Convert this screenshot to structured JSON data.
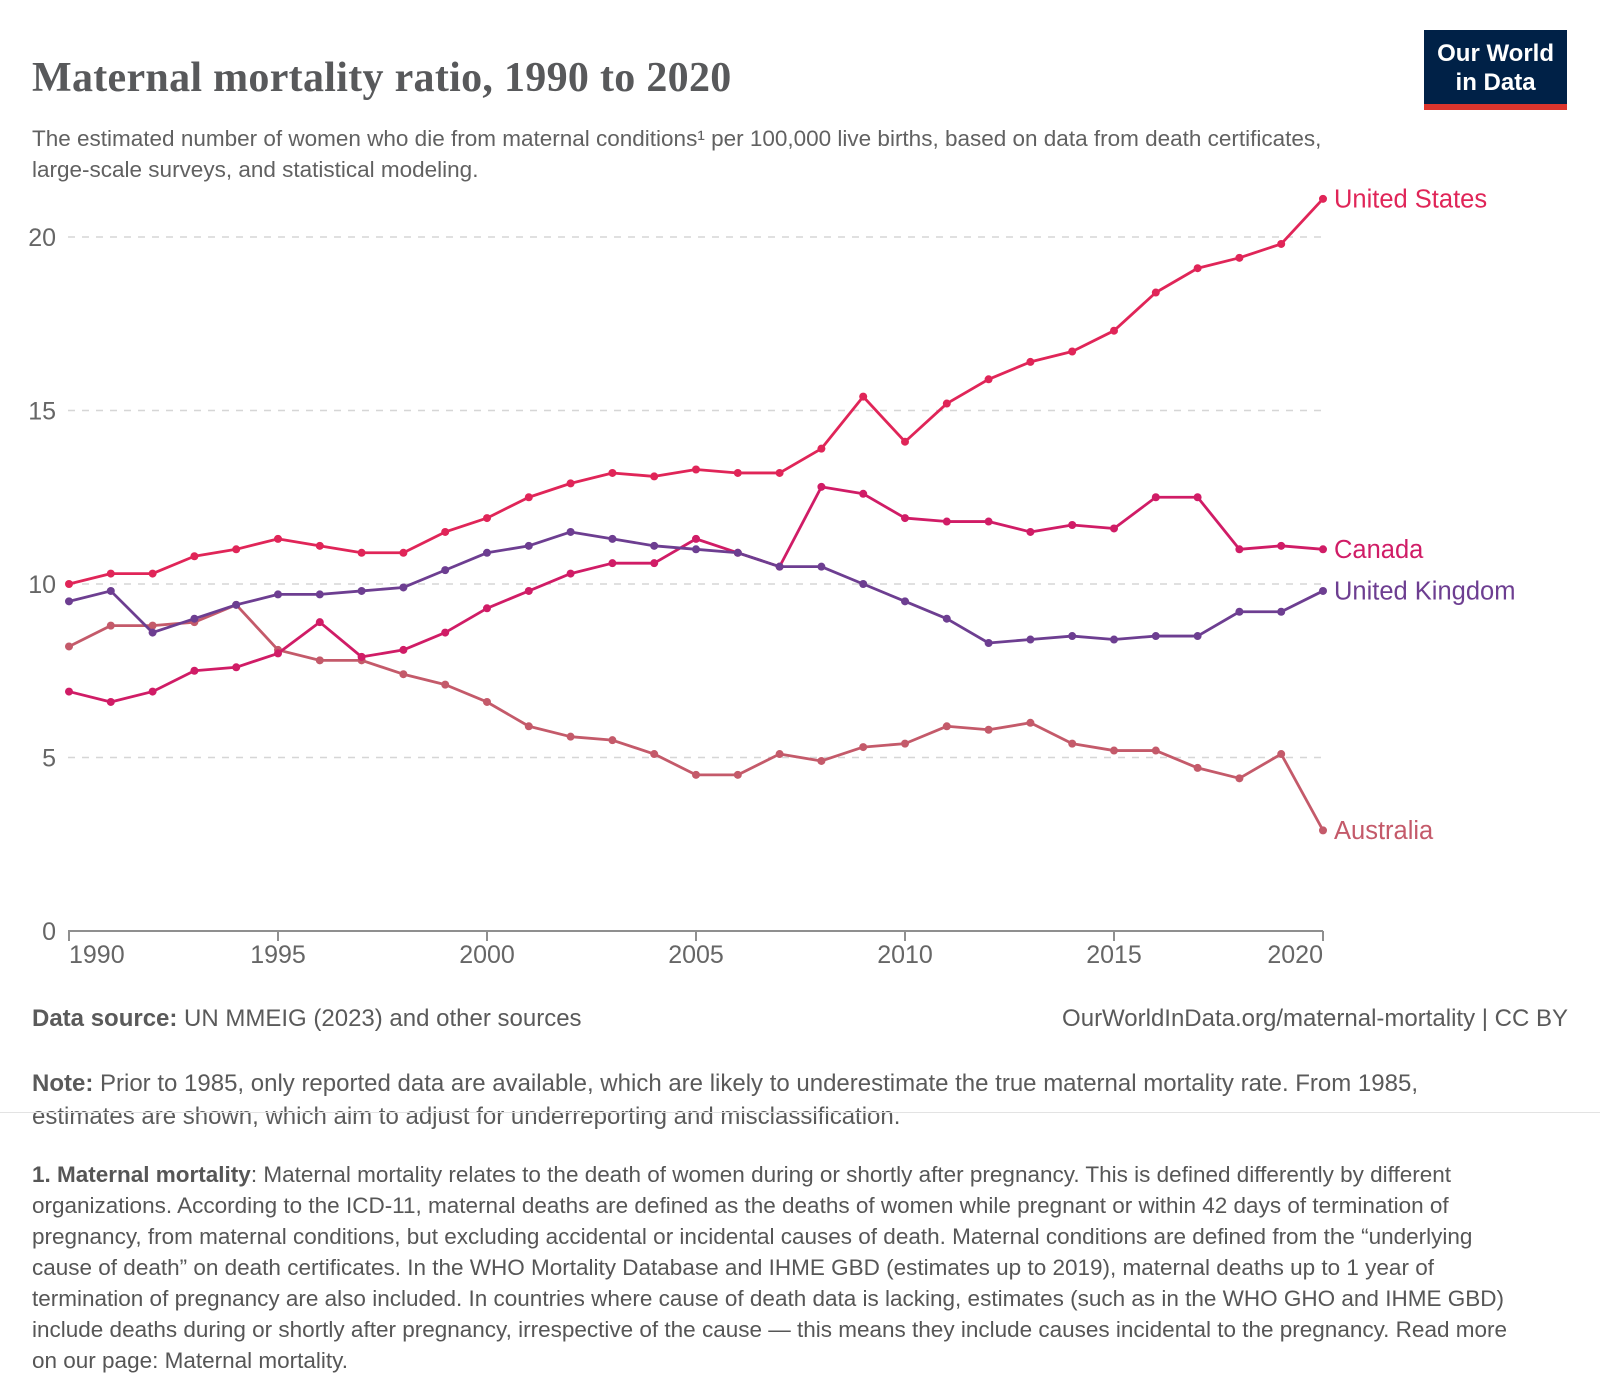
{
  "header": {
    "title": "Maternal mortality ratio, 1990 to 2020",
    "subtitle": "The estimated number of women who die from maternal conditions¹ per 100,000 live births, based on data from death certificates, large-scale surveys, and statistical modeling.",
    "logo": {
      "line1": "Our World",
      "line2": "in Data",
      "bg_color": "#002147",
      "accent_color": "#dc352d"
    }
  },
  "chart_data": {
    "type": "line",
    "title": "Maternal mortality ratio, 1990 to 2020",
    "ylabel": "",
    "xlabel": "",
    "xlim": [
      1990,
      2020
    ],
    "ylim": [
      0,
      21.5
    ],
    "yticks": [
      0,
      5,
      10,
      15,
      20
    ],
    "xticks": [
      1990,
      1995,
      2000,
      2005,
      2010,
      2015,
      2020
    ],
    "grid": "horizontal-dashed",
    "legend_position": "end-of-line-labels",
    "axis_color": "#8f8f8f",
    "grid_color": "#d6d6d6",
    "tick_label_color": "#666666",
    "years": [
      1990,
      1991,
      1992,
      1993,
      1994,
      1995,
      1996,
      1997,
      1998,
      1999,
      2000,
      2001,
      2002,
      2003,
      2004,
      2005,
      2006,
      2007,
      2008,
      2009,
      2010,
      2011,
      2012,
      2013,
      2014,
      2015,
      2016,
      2017,
      2018,
      2019,
      2020
    ],
    "series": [
      {
        "name": "Australia",
        "color": "#c45a6a",
        "values": [
          8.2,
          8.8,
          8.8,
          8.9,
          9.4,
          8.1,
          7.8,
          7.8,
          7.4,
          7.1,
          6.6,
          5.9,
          5.6,
          5.5,
          5.1,
          4.5,
          4.5,
          5.1,
          4.9,
          5.3,
          5.4,
          5.9,
          5.8,
          6.0,
          5.4,
          5.2,
          5.2,
          4.7,
          4.4,
          5.1,
          2.9
        ]
      },
      {
        "name": "Canada",
        "color": "#d01c66",
        "values": [
          6.9,
          6.6,
          6.9,
          7.5,
          7.6,
          8.0,
          8.9,
          7.9,
          8.1,
          8.6,
          9.3,
          9.8,
          10.3,
          10.6,
          10.6,
          11.3,
          10.9,
          10.5,
          12.8,
          12.6,
          11.9,
          11.8,
          11.8,
          11.5,
          11.7,
          11.6,
          12.5,
          12.5,
          11.0,
          11.1,
          11.0
        ]
      },
      {
        "name": "United Kingdom",
        "color": "#6d3e91",
        "values": [
          9.5,
          9.8,
          8.6,
          9.0,
          9.4,
          9.7,
          9.7,
          9.8,
          9.9,
          10.4,
          10.9,
          11.1,
          11.5,
          11.3,
          11.1,
          11.0,
          10.9,
          10.5,
          10.5,
          10.0,
          9.5,
          9.0,
          8.3,
          8.4,
          8.5,
          8.4,
          8.5,
          8.5,
          9.2,
          9.2,
          9.8
        ]
      },
      {
        "name": "United States",
        "color": "#e02558",
        "values": [
          10.0,
          10.3,
          10.3,
          10.8,
          11.0,
          11.3,
          11.1,
          10.9,
          10.9,
          11.5,
          11.9,
          12.5,
          12.9,
          13.2,
          13.1,
          13.3,
          13.2,
          13.2,
          13.9,
          15.4,
          14.1,
          15.2,
          15.9,
          16.4,
          16.7,
          17.3,
          18.4,
          19.1,
          19.4,
          19.8,
          21.1
        ]
      }
    ]
  },
  "footer": {
    "data_source_label": "Data source:",
    "data_source_value": " UN MMEIG (2023) and other sources",
    "attribution": "OurWorldInData.org/maternal-mortality | CC BY",
    "note_label": "Note:",
    "note_text": " Prior to 1985, only reported data are available, which are likely to underestimate the true maternal mortality rate. From 1985, estimates are shown, which aim to adjust for underreporting and misclassification."
  },
  "footnote": {
    "label": "1. Maternal mortality",
    "text": ": Maternal mortality relates to the death of women during or shortly after pregnancy. This is defined differently by different organizations. According to the ICD-11, maternal deaths are defined as the deaths of women while pregnant or within 42 days of termination of pregnancy, from maternal conditions, but excluding accidental or incidental causes of death. Maternal conditions are defined from the “underlying cause of death” on death certificates. In the WHO Mortality Database and IHME GBD (estimates up to 2019), maternal deaths up to 1 year of termination of pregnancy are also included. In countries where cause of death data is lacking, estimates (such as in the WHO GHO and IHME GBD) include deaths during or shortly after pregnancy, irrespective of the cause — this means they include causes incidental to the pregnancy. Read more on our page: Maternal mortality."
  }
}
